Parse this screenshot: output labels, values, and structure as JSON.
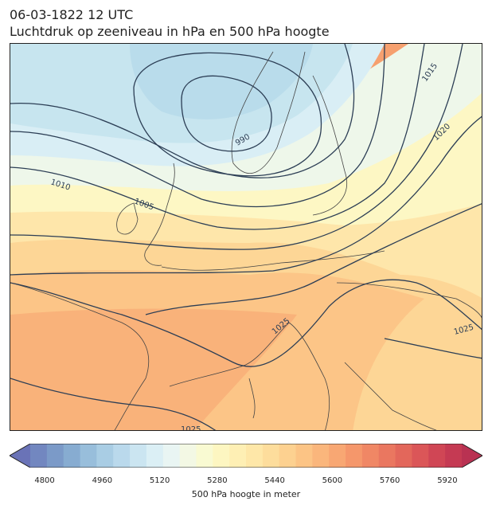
{
  "title": {
    "line1": "06-03-1822 12 UTC",
    "line2": "Luchtdruk op zeeniveau in hPa en 500 hPa hoogte"
  },
  "map": {
    "contour_labels": [
      "1015",
      "1020",
      "1010",
      "1005",
      "990",
      "1025",
      "1025",
      "1025"
    ],
    "colors": {
      "contour": "#2c3e55",
      "coast": "#444444"
    }
  },
  "colorbar": {
    "label": "500 hPa hoogte in meter",
    "ticks": [
      "4800",
      "4960",
      "5120",
      "5280",
      "5440",
      "5600",
      "5760",
      "5920"
    ],
    "min": 4760,
    "max": 5960,
    "step": 40,
    "colors": [
      "#6a73b7",
      "#7287c0",
      "#7b9ac8",
      "#87acd1",
      "#98bedb",
      "#a9cde4",
      "#bad9ec",
      "#cbe5f1",
      "#dbeff5",
      "#e9f5f3",
      "#f3f8e4",
      "#f9fad2",
      "#fdf6c1",
      "#feefb4",
      "#fee7a8",
      "#fddd9c",
      "#fdd190",
      "#fcc485",
      "#fab67c",
      "#f8a773",
      "#f5976b",
      "#f08765",
      "#ea7760",
      "#e3675b",
      "#db5658",
      "#d04655",
      "#c53a53",
      "#b93252"
    ]
  }
}
